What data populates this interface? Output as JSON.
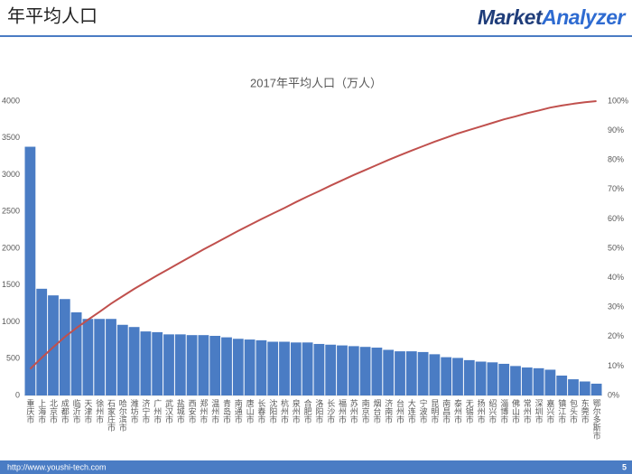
{
  "header": {
    "title": "年平均人口",
    "logo": [
      "Market",
      "Analyzer"
    ]
  },
  "footer": {
    "url": "http://www.youshi-tech.com",
    "page": "5"
  },
  "chart_data": {
    "type": "pareto",
    "title": "2017年平均人口（万人）",
    "categories": [
      "重庆市",
      "上海市",
      "北京市",
      "成都市",
      "临沂市",
      "天津市",
      "徐州市",
      "石家庄市",
      "哈尔滨市",
      "潍坊市",
      "济宁市",
      "广州市",
      "武汉市",
      "盐城市",
      "西安市",
      "郑州市",
      "温州市",
      "青岛市",
      "南通市",
      "唐山市",
      "长春市",
      "沈阳市",
      "杭州市",
      "泉州市",
      "合肥市",
      "洛阳市",
      "长沙市",
      "福州市",
      "苏州市",
      "南京市",
      "烟台市",
      "济南市",
      "台州市",
      "大连市",
      "宁波市",
      "昆明市",
      "南昌市",
      "泰州市",
      "无锡市",
      "扬州市",
      "绍兴市",
      "淄博市",
      "佛山市",
      "常州市",
      "深圳市",
      "嘉兴市",
      "镇江市",
      "包头市",
      "东莞市",
      "鄂尔多斯市"
    ],
    "series": [
      {
        "type": "bar",
        "color": "#4a7cc4",
        "values": [
          3380,
          1450,
          1360,
          1310,
          1130,
          1040,
          1040,
          1040,
          960,
          930,
          870,
          860,
          830,
          830,
          820,
          820,
          810,
          790,
          770,
          760,
          750,
          730,
          730,
          720,
          720,
          700,
          690,
          680,
          670,
          660,
          650,
          620,
          600,
          600,
          590,
          560,
          520,
          510,
          480,
          460,
          450,
          430,
          400,
          380,
          370,
          350,
          270,
          220,
          190,
          160
        ]
      },
      {
        "type": "line",
        "axis": "y2",
        "color": "#c0504d",
        "values": [
          9.0,
          12.8,
          16.4,
          19.9,
          22.9,
          25.7,
          28.4,
          31.2,
          33.7,
          36.2,
          38.5,
          40.8,
          43.0,
          45.2,
          47.4,
          49.6,
          51.7,
          53.8,
          55.9,
          57.9,
          59.9,
          61.8,
          63.7,
          65.7,
          67.6,
          69.4,
          71.3,
          73.1,
          74.9,
          76.6,
          78.3,
          80.0,
          81.6,
          83.2,
          84.7,
          86.2,
          87.6,
          89.0,
          90.2,
          91.4,
          92.6,
          93.8,
          94.8,
          95.9,
          96.8,
          97.8,
          98.5,
          99.1,
          99.6,
          100
        ]
      }
    ],
    "ylim": [
      0,
      4000
    ],
    "yticks": [
      0,
      500,
      1000,
      1500,
      2000,
      2500,
      3000,
      3500,
      4000
    ],
    "y2lim": [
      0,
      100
    ],
    "y2ticks": [
      {
        "value": 0,
        "label": "0%"
      },
      {
        "value": 10,
        "label": "10%"
      },
      {
        "value": 20,
        "label": "20%"
      },
      {
        "value": 30,
        "label": "30%"
      },
      {
        "value": 40,
        "label": "40%"
      },
      {
        "value": 50,
        "label": "50%"
      },
      {
        "value": 60,
        "label": "60%"
      },
      {
        "value": 70,
        "label": "70%"
      },
      {
        "value": 80,
        "label": "80%"
      },
      {
        "value": 90,
        "label": "90%"
      },
      {
        "value": 100,
        "label": "100%"
      }
    ]
  }
}
